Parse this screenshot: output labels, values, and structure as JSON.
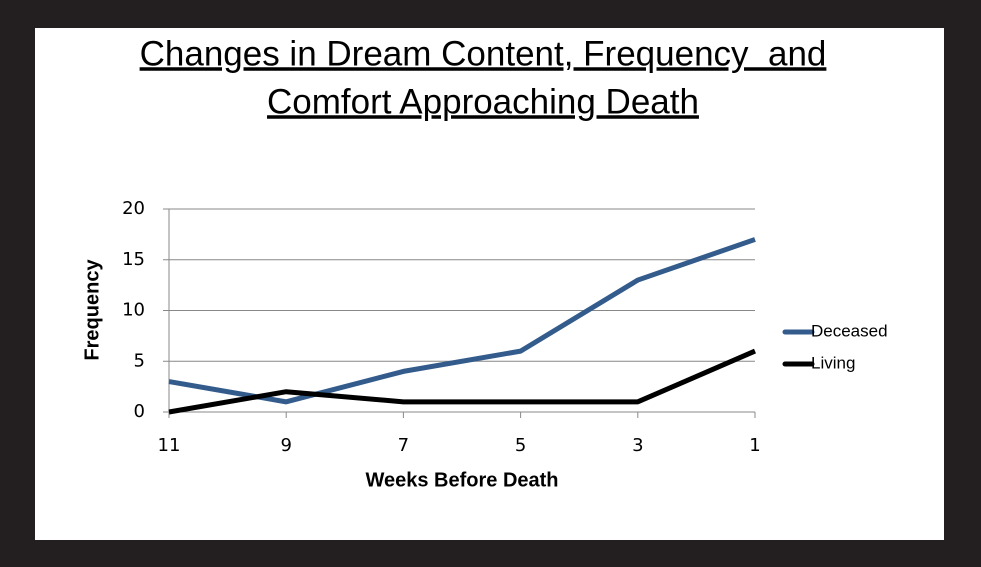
{
  "chart_data": {
    "type": "line",
    "title": [
      "Changes in Dream Content, Frequency  and",
      "Comfort Approaching Death"
    ],
    "x_label": "Weeks Before Death",
    "y_label": "Frequency",
    "x": [
      11,
      9,
      7,
      5,
      3,
      1
    ],
    "series": [
      {
        "name": "Deceased",
        "color": "#335b8c",
        "values": [
          3,
          1,
          4,
          6,
          13,
          17
        ]
      },
      {
        "name": "Living",
        "color": "#000000",
        "values": [
          0,
          2,
          1,
          1,
          1,
          6
        ]
      }
    ],
    "xlim": [
      11,
      1
    ],
    "xticks": [
      11,
      9,
      7,
      5,
      3,
      1
    ],
    "ylim": [
      0,
      20
    ],
    "yticks": [
      0,
      5,
      10,
      15,
      20
    ],
    "grid": true,
    "legend": "right"
  }
}
